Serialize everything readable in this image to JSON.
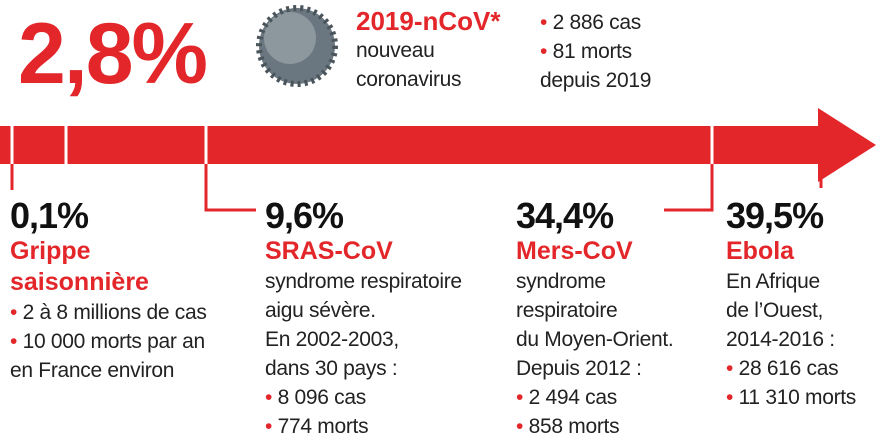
{
  "header": {
    "rate": "2,8%",
    "name": "2019-nCoV*",
    "description": [
      "nouveau",
      "coronavirus"
    ],
    "bullets": [
      "2 886 cas",
      "81 morts"
    ],
    "note": "depuis 2019"
  },
  "items": [
    {
      "rate": "0,1%",
      "name": [
        "Grippe",
        "saisonnière"
      ],
      "description": [],
      "bullets": [
        "2 à 8 millions de cas",
        "10 000 morts par an"
      ],
      "note": "en France environ"
    },
    {
      "rate": "9,6%",
      "name": [
        "SRAS-CoV"
      ],
      "description": [
        "syndrome respiratoire",
        "aigu sévère.",
        "En 2002-2003,",
        "dans 30 pays :"
      ],
      "bullets": [
        "8 096 cas",
        "774 morts"
      ],
      "note": null
    },
    {
      "rate": "34,4%",
      "name": [
        "Mers-CoV"
      ],
      "description": [
        "syndrome",
        "respiratoire",
        "du Moyen-Orient.",
        "Depuis 2012 :"
      ],
      "bullets": [
        "2 494 cas",
        "858 morts"
      ],
      "note": null
    },
    {
      "rate": "39,5%",
      "name": [
        "Ebola"
      ],
      "description": [
        "En Afrique",
        "de l’Ouest,",
        "2014-2016 :"
      ],
      "bullets": [
        "28 616 cas",
        "11 310 morts"
      ],
      "note": null
    }
  ]
}
